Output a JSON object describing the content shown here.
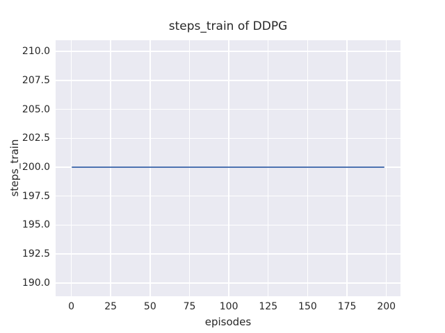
{
  "chart_data": {
    "type": "line",
    "title": "steps_train of DDPG",
    "xlabel": "episodes",
    "ylabel": "steps_train",
    "x_ticks": [
      0,
      25,
      50,
      75,
      100,
      125,
      150,
      175,
      200
    ],
    "x_tick_labels": [
      "0",
      "25",
      "50",
      "75",
      "100",
      "125",
      "150",
      "175",
      "200"
    ],
    "y_ticks": [
      190.0,
      192.5,
      195.0,
      197.5,
      200.0,
      202.5,
      205.0,
      207.5,
      210.0
    ],
    "y_tick_labels": [
      "190.0",
      "192.5",
      "195.0",
      "197.5",
      "200.0",
      "202.5",
      "205.0",
      "207.5",
      "210.0"
    ],
    "xlim": [
      -9.95,
      208.95
    ],
    "ylim": [
      188.85,
      210.97
    ],
    "grid": true,
    "legend_position": "none",
    "series": [
      {
        "name": "steps_train",
        "description": "constant value 200 for every episode from 0 to 199",
        "points": [
          [
            0,
            200
          ],
          [
            199,
            200
          ]
        ],
        "constant_y": 200,
        "color": "#4c72b0"
      }
    ]
  },
  "style": {
    "figure_bg": "#ffffff",
    "plot_bg": "#eaeaf2",
    "grid_color": "#ffffff",
    "text_color": "#262626",
    "line_color": "#4c72b0"
  }
}
